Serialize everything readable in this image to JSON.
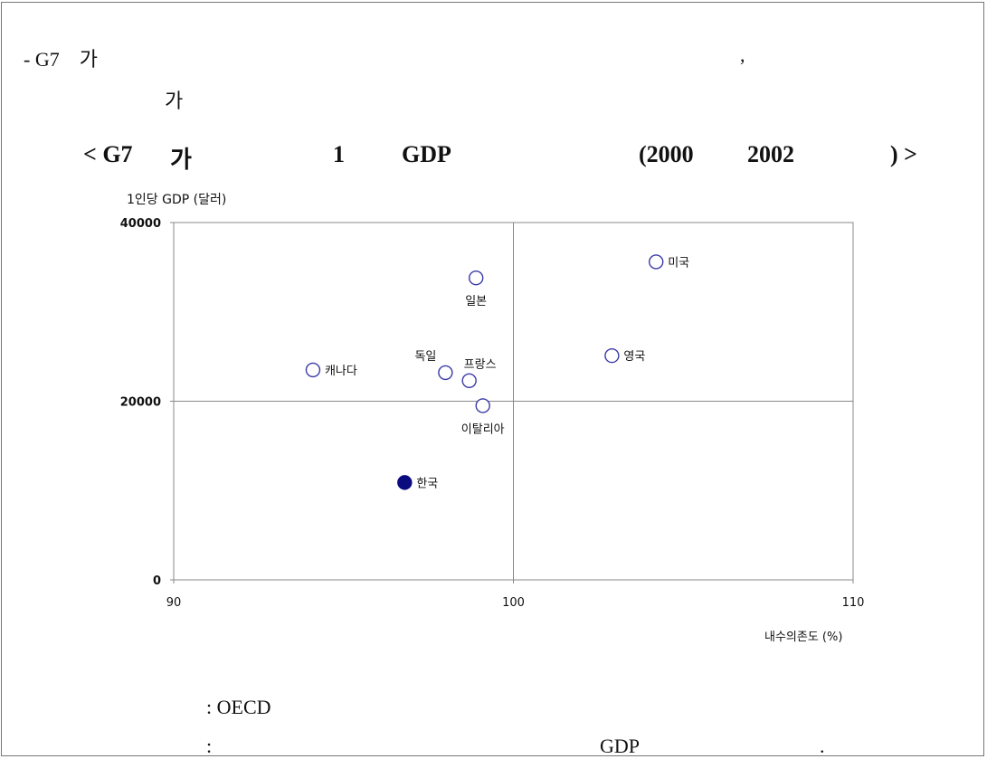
{
  "header": {
    "line1_left": "- G7    가",
    "line1_right": ",",
    "line2": "가"
  },
  "title": {
    "part1": "< G7",
    "part2": "가",
    "part3": "1",
    "part4": "GDP",
    "part5": "(2000",
    "part6": "2002",
    "part7": ") >"
  },
  "chart_data": {
    "type": "scatter",
    "ylabel": "1인당 GDP (달러)",
    "xlabel": "내수의존도 (%)",
    "xlim": [
      90,
      110
    ],
    "ylim": [
      0,
      40000
    ],
    "x_ticks": [
      "90",
      "100",
      "110"
    ],
    "y_ticks": [
      "0",
      "20000",
      "40000"
    ],
    "reference_lines": {
      "x": 100,
      "y": 20000
    },
    "points": [
      {
        "label": "미국",
        "x": 104.2,
        "y": 35600,
        "filled": false,
        "label_pos": "right"
      },
      {
        "label": "일본",
        "x": 98.9,
        "y": 33800,
        "filled": false,
        "label_pos": "below"
      },
      {
        "label": "영국",
        "x": 102.9,
        "y": 25100,
        "filled": false,
        "label_pos": "right"
      },
      {
        "label": "캐나다",
        "x": 94.1,
        "y": 23500,
        "filled": false,
        "label_pos": "right"
      },
      {
        "label": "독일",
        "x": 98.0,
        "y": 23200,
        "filled": false,
        "label_pos": "above-left"
      },
      {
        "label": "프랑스",
        "x": 98.7,
        "y": 22300,
        "filled": false,
        "label_pos": "above-right"
      },
      {
        "label": "이탈리아",
        "x": 99.1,
        "y": 19500,
        "filled": false,
        "label_pos": "below"
      },
      {
        "label": "한국",
        "x": 96.8,
        "y": 10900,
        "filled": true,
        "label_pos": "right"
      }
    ],
    "colors": {
      "marker": "#3a3aa8",
      "axis": "#888888"
    }
  },
  "footer": {
    "source": ": OECD",
    "note_prefix": ":",
    "note_mid": "GDP",
    "note_end": "."
  }
}
